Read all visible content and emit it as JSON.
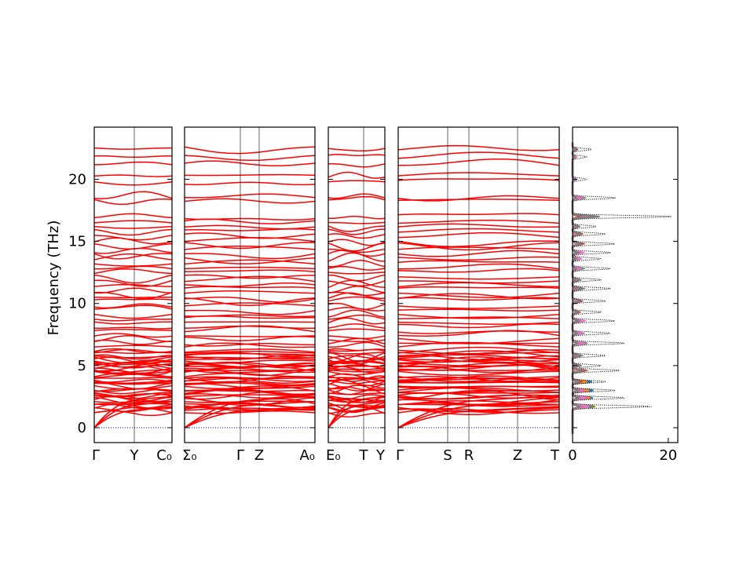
{
  "chart_data": {
    "type": "line",
    "ylabel": "Frequency (THz)",
    "ylim": [
      -1.2,
      24.2
    ],
    "yticks": [
      0,
      5,
      10,
      15,
      20
    ],
    "band_color": "#ff0000",
    "zero_line_color": "#00008b",
    "panels": [
      {
        "name": "segment-1",
        "xticks": [
          "Γ",
          "Y",
          "C₀"
        ]
      },
      {
        "name": "segment-2",
        "xticks": [
          "Σ₀",
          "Γ",
          "Z",
          "A₀"
        ]
      },
      {
        "name": "segment-3",
        "xticks": [
          "E₀",
          "T",
          "Y"
        ]
      },
      {
        "name": "segment-4",
        "xticks": [
          "Γ",
          "S",
          "R",
          "Z",
          "T"
        ]
      }
    ],
    "dos_panel": {
      "xticks": [
        0,
        20
      ],
      "xlim": [
        0,
        22
      ],
      "series_colors": [
        "#1f77b4",
        "#ff7f0e",
        "#2ca02c",
        "#d62728",
        "#9467bd",
        "#8c564b",
        "#e377c2",
        "#7f7f7f"
      ],
      "total_color": "#000000",
      "total_peaks": [
        {
          "f": 1.7,
          "v": 16.5
        },
        {
          "f": 2.4,
          "v": 11
        },
        {
          "f": 3.0,
          "v": 9
        },
        {
          "f": 3.7,
          "v": 7
        },
        {
          "f": 4.6,
          "v": 10
        },
        {
          "f": 5.0,
          "v": 6
        },
        {
          "f": 5.8,
          "v": 7
        },
        {
          "f": 6.8,
          "v": 11
        },
        {
          "f": 7.6,
          "v": 8
        },
        {
          "f": 8.6,
          "v": 9
        },
        {
          "f": 9.3,
          "v": 6
        },
        {
          "f": 10.2,
          "v": 7
        },
        {
          "f": 11.2,
          "v": 8
        },
        {
          "f": 11.9,
          "v": 6
        },
        {
          "f": 12.8,
          "v": 8
        },
        {
          "f": 13.6,
          "v": 6
        },
        {
          "f": 14.1,
          "v": 8
        },
        {
          "f": 14.8,
          "v": 9
        },
        {
          "f": 15.6,
          "v": 7
        },
        {
          "f": 16.2,
          "v": 5
        },
        {
          "f": 17.0,
          "v": 21
        },
        {
          "f": 18.5,
          "v": 9
        },
        {
          "f": 20.0,
          "v": 3
        },
        {
          "f": 21.8,
          "v": 3
        },
        {
          "f": 22.4,
          "v": 4
        }
      ]
    }
  }
}
